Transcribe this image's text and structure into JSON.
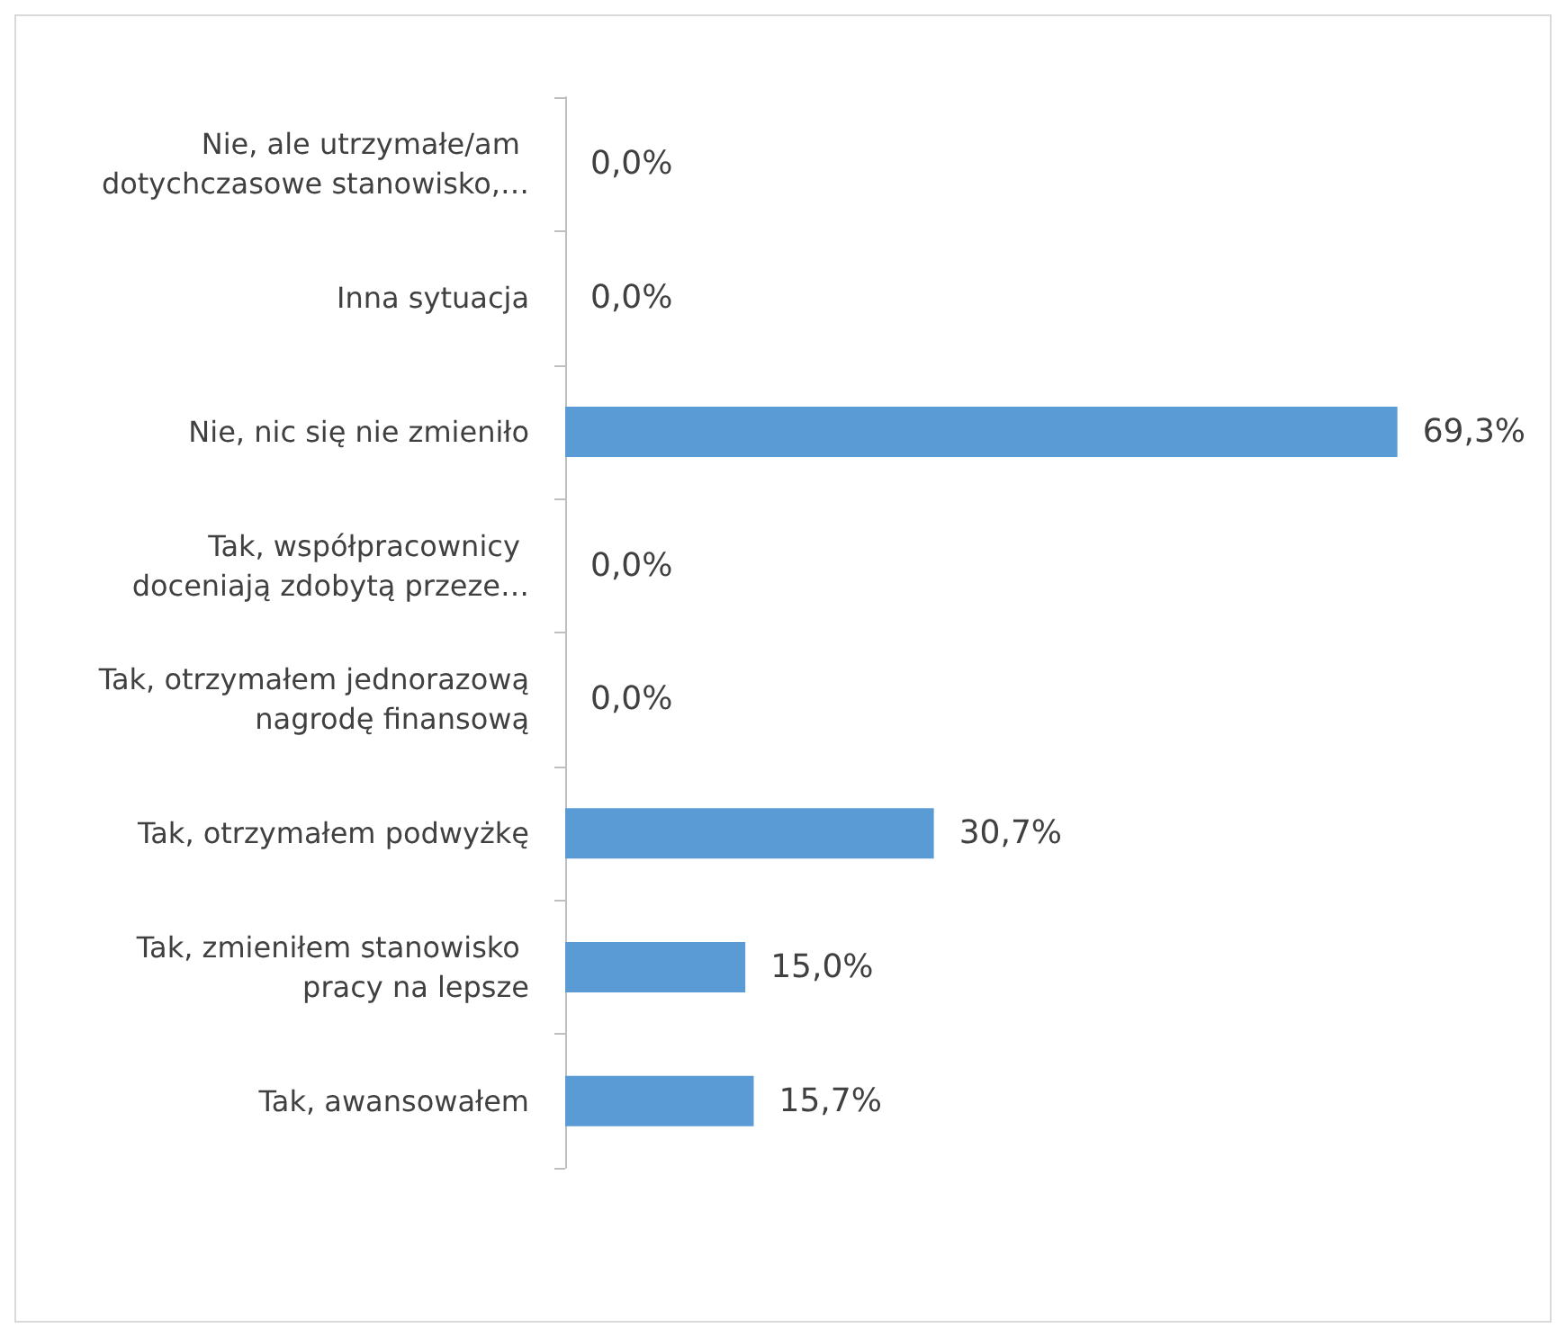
{
  "chart_data": {
    "type": "bar",
    "orientation": "horizontal",
    "categories": [
      "Nie, ale utrzymałe/am dotychczasowe stanowisko,…",
      "Inna sytuacja",
      "Nie, nic się nie zmieniło",
      "Tak, współpracownicy doceniają zdobytą przeze…",
      "Tak, otrzymałem jednorazową nagrodę finansową",
      "Tak, otrzymałem podwyżkę",
      "Tak, zmieniłem stanowisko pracy na lepsze",
      "Tak, awansowałem"
    ],
    "values": [
      0,
      0,
      69.3,
      0,
      0,
      30.7,
      15.0,
      15.7
    ],
    "value_labels": [
      "0,0%",
      "0,0%",
      "69,3%",
      "0,0%",
      "0,0%",
      "30,7%",
      "15,0%",
      "15,7%"
    ],
    "color": "#5b9bd5"
  }
}
